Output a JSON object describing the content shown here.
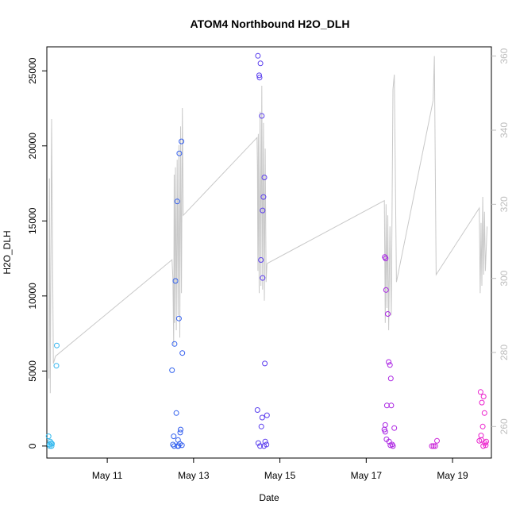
{
  "chart_data": {
    "type": "scatter",
    "title": "ATOM4 Northbound H2O_DLH",
    "xlabel": "Date",
    "ylabel": "H2O_DLH",
    "xlim_days": [
      9.6,
      19.9
    ],
    "ylim": [
      -800,
      26600
    ],
    "y2lim": [
      251.5,
      362.5
    ],
    "x_ticks": [
      {
        "day": 11,
        "label": "May 11"
      },
      {
        "day": 13,
        "label": "May 13"
      },
      {
        "day": 15,
        "label": "May 15"
      },
      {
        "day": 17,
        "label": "May 17"
      },
      {
        "day": 19,
        "label": "May 19"
      }
    ],
    "y_ticks": [
      0,
      5000,
      10000,
      15000,
      20000,
      25000
    ],
    "y2_ticks": [
      260,
      280,
      300,
      320,
      340,
      360
    ],
    "grid": false,
    "colors": {
      "line": "#c8c8c8",
      "axis": "#000000",
      "right_axis": "#bdbdbd"
    },
    "point_color_gradient": [
      "#33bbee",
      "#3355ee",
      "#8822ee",
      "#ee22cc"
    ],
    "points": [
      {
        "x": 9.64,
        "y": 650
      },
      {
        "x": 9.66,
        "y": 100
      },
      {
        "x": 9.67,
        "y": 0
      },
      {
        "x": 9.68,
        "y": 300
      },
      {
        "x": 9.7,
        "y": 200
      },
      {
        "x": 9.71,
        "y": 0
      },
      {
        "x": 9.72,
        "y": 150
      },
      {
        "x": 9.83,
        "y": 6700
      },
      {
        "x": 9.82,
        "y": 5350
      },
      {
        "x": 12.5,
        "y": 5050
      },
      {
        "x": 12.52,
        "y": 100
      },
      {
        "x": 12.54,
        "y": 650
      },
      {
        "x": 12.56,
        "y": 6800
      },
      {
        "x": 12.58,
        "y": 11000
      },
      {
        "x": 12.6,
        "y": 2200
      },
      {
        "x": 12.62,
        "y": 16300
      },
      {
        "x": 12.63,
        "y": 0
      },
      {
        "x": 12.66,
        "y": 8500
      },
      {
        "x": 12.67,
        "y": 19500
      },
      {
        "x": 12.68,
        "y": 150
      },
      {
        "x": 12.7,
        "y": 1100
      },
      {
        "x": 12.72,
        "y": 20300
      },
      {
        "x": 12.74,
        "y": 6200
      },
      {
        "x": 12.64,
        "y": 400
      },
      {
        "x": 12.69,
        "y": 900
      },
      {
        "x": 12.73,
        "y": 50
      },
      {
        "x": 12.55,
        "y": 0
      },
      {
        "x": 12.65,
        "y": 0
      },
      {
        "x": 14.48,
        "y": 2400
      },
      {
        "x": 14.49,
        "y": 26000
      },
      {
        "x": 14.5,
        "y": 200
      },
      {
        "x": 14.52,
        "y": 24700
      },
      {
        "x": 14.53,
        "y": 24550
      },
      {
        "x": 14.55,
        "y": 25500
      },
      {
        "x": 14.56,
        "y": 12400
      },
      {
        "x": 14.57,
        "y": 1300
      },
      {
        "x": 14.58,
        "y": 22000
      },
      {
        "x": 14.59,
        "y": 1900
      },
      {
        "x": 14.6,
        "y": 11200
      },
      {
        "x": 14.62,
        "y": 16600
      },
      {
        "x": 14.64,
        "y": 17900
      },
      {
        "x": 14.65,
        "y": 5500
      },
      {
        "x": 14.66,
        "y": 300
      },
      {
        "x": 14.7,
        "y": 2050
      },
      {
        "x": 14.69,
        "y": 100
      },
      {
        "x": 14.63,
        "y": 0
      },
      {
        "x": 14.54,
        "y": 0
      },
      {
        "x": 14.6,
        "y": 15700
      },
      {
        "x": 17.42,
        "y": 1100
      },
      {
        "x": 17.43,
        "y": 12600
      },
      {
        "x": 17.44,
        "y": 1400
      },
      {
        "x": 17.45,
        "y": 12500
      },
      {
        "x": 17.46,
        "y": 10400
      },
      {
        "x": 17.48,
        "y": 2700
      },
      {
        "x": 17.5,
        "y": 8800
      },
      {
        "x": 17.52,
        "y": 5600
      },
      {
        "x": 17.55,
        "y": 5400
      },
      {
        "x": 17.57,
        "y": 4500
      },
      {
        "x": 17.58,
        "y": 2700
      },
      {
        "x": 17.6,
        "y": 100
      },
      {
        "x": 17.65,
        "y": 1200
      },
      {
        "x": 17.62,
        "y": 0
      },
      {
        "x": 17.47,
        "y": 450
      },
      {
        "x": 17.53,
        "y": 300
      },
      {
        "x": 17.56,
        "y": 50
      },
      {
        "x": 17.44,
        "y": 950
      },
      {
        "x": 18.52,
        "y": 0
      },
      {
        "x": 18.56,
        "y": 0
      },
      {
        "x": 18.6,
        "y": 0
      },
      {
        "x": 18.64,
        "y": 350
      },
      {
        "x": 19.62,
        "y": 350
      },
      {
        "x": 19.65,
        "y": 3600
      },
      {
        "x": 19.66,
        "y": 700
      },
      {
        "x": 19.68,
        "y": 2900
      },
      {
        "x": 19.7,
        "y": 1300
      },
      {
        "x": 19.72,
        "y": 3300
      },
      {
        "x": 19.74,
        "y": 2200
      },
      {
        "x": 19.75,
        "y": 200
      },
      {
        "x": 19.77,
        "y": 50
      },
      {
        "x": 19.71,
        "y": 0
      },
      {
        "x": 19.67,
        "y": 400
      },
      {
        "x": 19.78,
        "y": 300
      }
    ],
    "line_right_axis": [
      [
        9.65,
        273
      ],
      [
        9.66,
        327
      ],
      [
        9.68,
        269
      ],
      [
        9.71,
        343
      ],
      [
        9.75,
        277
      ],
      [
        9.8,
        279
      ],
      [
        12.5,
        305
      ],
      [
        12.52,
        300
      ],
      [
        12.54,
        282
      ],
      [
        12.55,
        328
      ],
      [
        12.56,
        288
      ],
      [
        12.58,
        330
      ],
      [
        12.6,
        286
      ],
      [
        12.62,
        332
      ],
      [
        12.64,
        290
      ],
      [
        12.66,
        336
      ],
      [
        12.68,
        284
      ],
      [
        12.7,
        341
      ],
      [
        12.72,
        296
      ],
      [
        12.74,
        346
      ],
      [
        12.76,
        317
      ],
      [
        14.47,
        338
      ],
      [
        14.48,
        330
      ],
      [
        14.49,
        302
      ],
      [
        14.5,
        339
      ],
      [
        14.52,
        296
      ],
      [
        14.54,
        345
      ],
      [
        14.56,
        298
      ],
      [
        14.58,
        352
      ],
      [
        14.6,
        297
      ],
      [
        14.62,
        342
      ],
      [
        14.64,
        294
      ],
      [
        14.66,
        335
      ],
      [
        14.68,
        299
      ],
      [
        14.7,
        304
      ],
      [
        17.42,
        321
      ],
      [
        17.44,
        288
      ],
      [
        17.46,
        320
      ],
      [
        17.48,
        292
      ],
      [
        17.5,
        317
      ],
      [
        17.52,
        286
      ],
      [
        17.55,
        314
      ],
      [
        17.58,
        290
      ],
      [
        17.62,
        351
      ],
      [
        17.65,
        355
      ],
      [
        17.7,
        299
      ],
      [
        18.55,
        348
      ],
      [
        18.58,
        360
      ],
      [
        18.62,
        301
      ],
      [
        19.62,
        319
      ],
      [
        19.64,
        296
      ],
      [
        19.66,
        315
      ],
      [
        19.68,
        298
      ],
      [
        19.7,
        322
      ],
      [
        19.72,
        301
      ],
      [
        19.74,
        318
      ],
      [
        19.76,
        302
      ],
      [
        19.8,
        314
      ]
    ]
  }
}
